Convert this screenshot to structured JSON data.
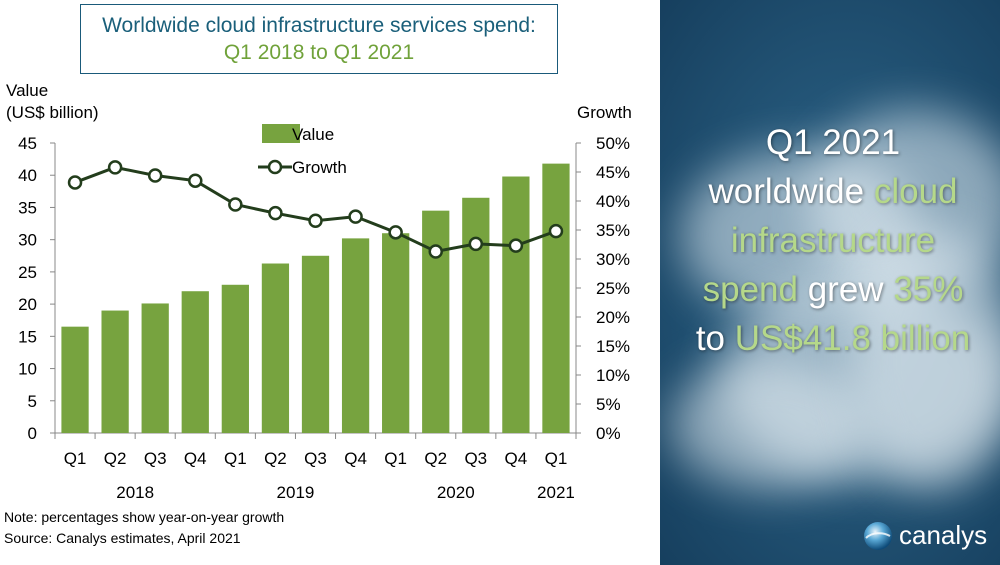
{
  "title": {
    "line1": "Worldwide cloud infrastructure services spend:",
    "line2": "Q1 2018 to Q1 2021"
  },
  "headline": {
    "q": "Q1 2021",
    "w1": "worldwide",
    "w2": "cloud",
    "w3": "infrastructure",
    "w4": "spend",
    "w5": "grew",
    "w6": "35%",
    "w7": "to",
    "w8": "US$41.8 billion"
  },
  "notes": {
    "note": "Note: percentages show year-on-year growth",
    "source": "Source: Canalys estimates, April 2021"
  },
  "logo": {
    "text": "canalys"
  },
  "colors": {
    "bar": "#77a33f",
    "line": "#233d1c",
    "title_blue": "#1a5f7a",
    "accent_green": "#b5d88a"
  },
  "chart_data": {
    "type": "bar+line",
    "categories": [
      "Q1",
      "Q2",
      "Q3",
      "Q4",
      "Q1",
      "Q2",
      "Q3",
      "Q4",
      "Q1",
      "Q2",
      "Q3",
      "Q4",
      "Q1"
    ],
    "years": [
      {
        "label": "2018",
        "span": [
          0,
          3
        ]
      },
      {
        "label": "2019",
        "span": [
          4,
          7
        ]
      },
      {
        "label": "2020",
        "span": [
          8,
          11
        ]
      },
      {
        "label": "2021",
        "span": [
          12,
          12
        ]
      }
    ],
    "series": [
      {
        "name": "Value",
        "type": "bar",
        "axis": "left",
        "values": [
          16.5,
          19.0,
          20.1,
          22.0,
          23.0,
          26.3,
          27.5,
          30.2,
          31.0,
          34.5,
          36.5,
          39.8,
          41.8
        ]
      },
      {
        "name": "Growth",
        "type": "line",
        "axis": "right",
        "values": [
          43.2,
          45.8,
          44.4,
          43.5,
          39.4,
          37.9,
          36.6,
          37.3,
          34.6,
          31.3,
          32.6,
          32.3,
          34.8
        ]
      }
    ],
    "ylabel_left": [
      "Value",
      "(US$ billion)"
    ],
    "ylabel_right": "Growth",
    "ylim_left": [
      0,
      45
    ],
    "yticks_left": [
      "0",
      "5",
      "10",
      "15",
      "20",
      "25",
      "30",
      "35",
      "40",
      "45"
    ],
    "ylim_right": [
      0,
      50
    ],
    "yticks_right": [
      "0%",
      "5%",
      "10%",
      "15%",
      "20%",
      "25%",
      "30%",
      "35%",
      "40%",
      "45%",
      "50%"
    ],
    "legend": "top-center",
    "grid": false
  }
}
